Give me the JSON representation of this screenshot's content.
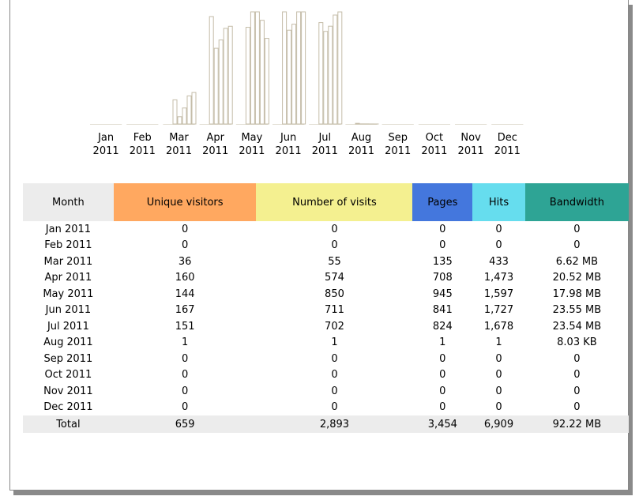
{
  "chart": {
    "type": "bar",
    "months": [
      {
        "month": "Jan",
        "year": "2011"
      },
      {
        "month": "Feb",
        "year": "2011"
      },
      {
        "month": "Mar",
        "year": "2011"
      },
      {
        "month": "Apr",
        "year": "2011"
      },
      {
        "month": "May",
        "year": "2011"
      },
      {
        "month": "Jun",
        "year": "2011"
      },
      {
        "month": "Jul",
        "year": "2011"
      },
      {
        "month": "Aug",
        "year": "2011"
      },
      {
        "month": "Sep",
        "year": "2011"
      },
      {
        "month": "Oct",
        "year": "2011"
      },
      {
        "month": "Nov",
        "year": "2011"
      },
      {
        "month": "Dec",
        "year": "2011"
      }
    ],
    "bar_color": "#ffffff",
    "bar_stroke": "#c4bca8",
    "series": [
      {
        "values": [
          0,
          0,
          36,
          160,
          144,
          167,
          151,
          1,
          0,
          0,
          0,
          0
        ]
      },
      {
        "values": [
          0,
          0,
          55,
          574,
          850,
          711,
          702,
          1,
          0,
          0,
          0,
          0
        ]
      },
      {
        "values": [
          0,
          0,
          135,
          708,
          945,
          841,
          824,
          1,
          0,
          0,
          0,
          0
        ]
      },
      {
        "values": [
          0,
          0,
          433,
          1473,
          1597,
          1727,
          1678,
          1,
          0,
          0,
          0,
          0
        ]
      },
      {
        "values": [
          0,
          0,
          6.62,
          20.52,
          17.98,
          23.55,
          23.54,
          0.00803,
          0,
          0,
          0,
          0
        ]
      }
    ]
  },
  "table": {
    "headers": [
      {
        "text": "Month",
        "color": "#ececec",
        "fg": "#000000"
      },
      {
        "text": "Unique visitors",
        "color": "#ffa860",
        "fg": "#000000"
      },
      {
        "text": "Number of visits",
        "color": "#f4f090",
        "fg": "#000000"
      },
      {
        "text": "Pages",
        "color": "#4477dd",
        "fg": "#000000"
      },
      {
        "text": "Hits",
        "color": "#66ddee",
        "fg": "#000000"
      },
      {
        "text": "Bandwidth",
        "color": "#2ea495",
        "fg": "#000000"
      }
    ],
    "rows": [
      [
        "Jan 2011",
        "0",
        "0",
        "0",
        "0",
        "0"
      ],
      [
        "Feb 2011",
        "0",
        "0",
        "0",
        "0",
        "0"
      ],
      [
        "Mar 2011",
        "36",
        "55",
        "135",
        "433",
        "6.62 MB"
      ],
      [
        "Apr 2011",
        "160",
        "574",
        "708",
        "1,473",
        "20.52 MB"
      ],
      [
        "May 2011",
        "144",
        "850",
        "945",
        "1,597",
        "17.98 MB"
      ],
      [
        "Jun 2011",
        "167",
        "711",
        "841",
        "1,727",
        "23.55 MB"
      ],
      [
        "Jul 2011",
        "151",
        "702",
        "824",
        "1,678",
        "23.54 MB"
      ],
      [
        "Aug 2011",
        "1",
        "1",
        "1",
        "1",
        "8.03 KB"
      ],
      [
        "Sep 2011",
        "0",
        "0",
        "0",
        "0",
        "0"
      ],
      [
        "Oct 2011",
        "0",
        "0",
        "0",
        "0",
        "0"
      ],
      [
        "Nov 2011",
        "0",
        "0",
        "0",
        "0",
        "0"
      ],
      [
        "Dec 2011",
        "0",
        "0",
        "0",
        "0",
        "0"
      ]
    ],
    "total": [
      "Total",
      "659",
      "2,893",
      "3,454",
      "6,909",
      "92.22 MB"
    ]
  }
}
